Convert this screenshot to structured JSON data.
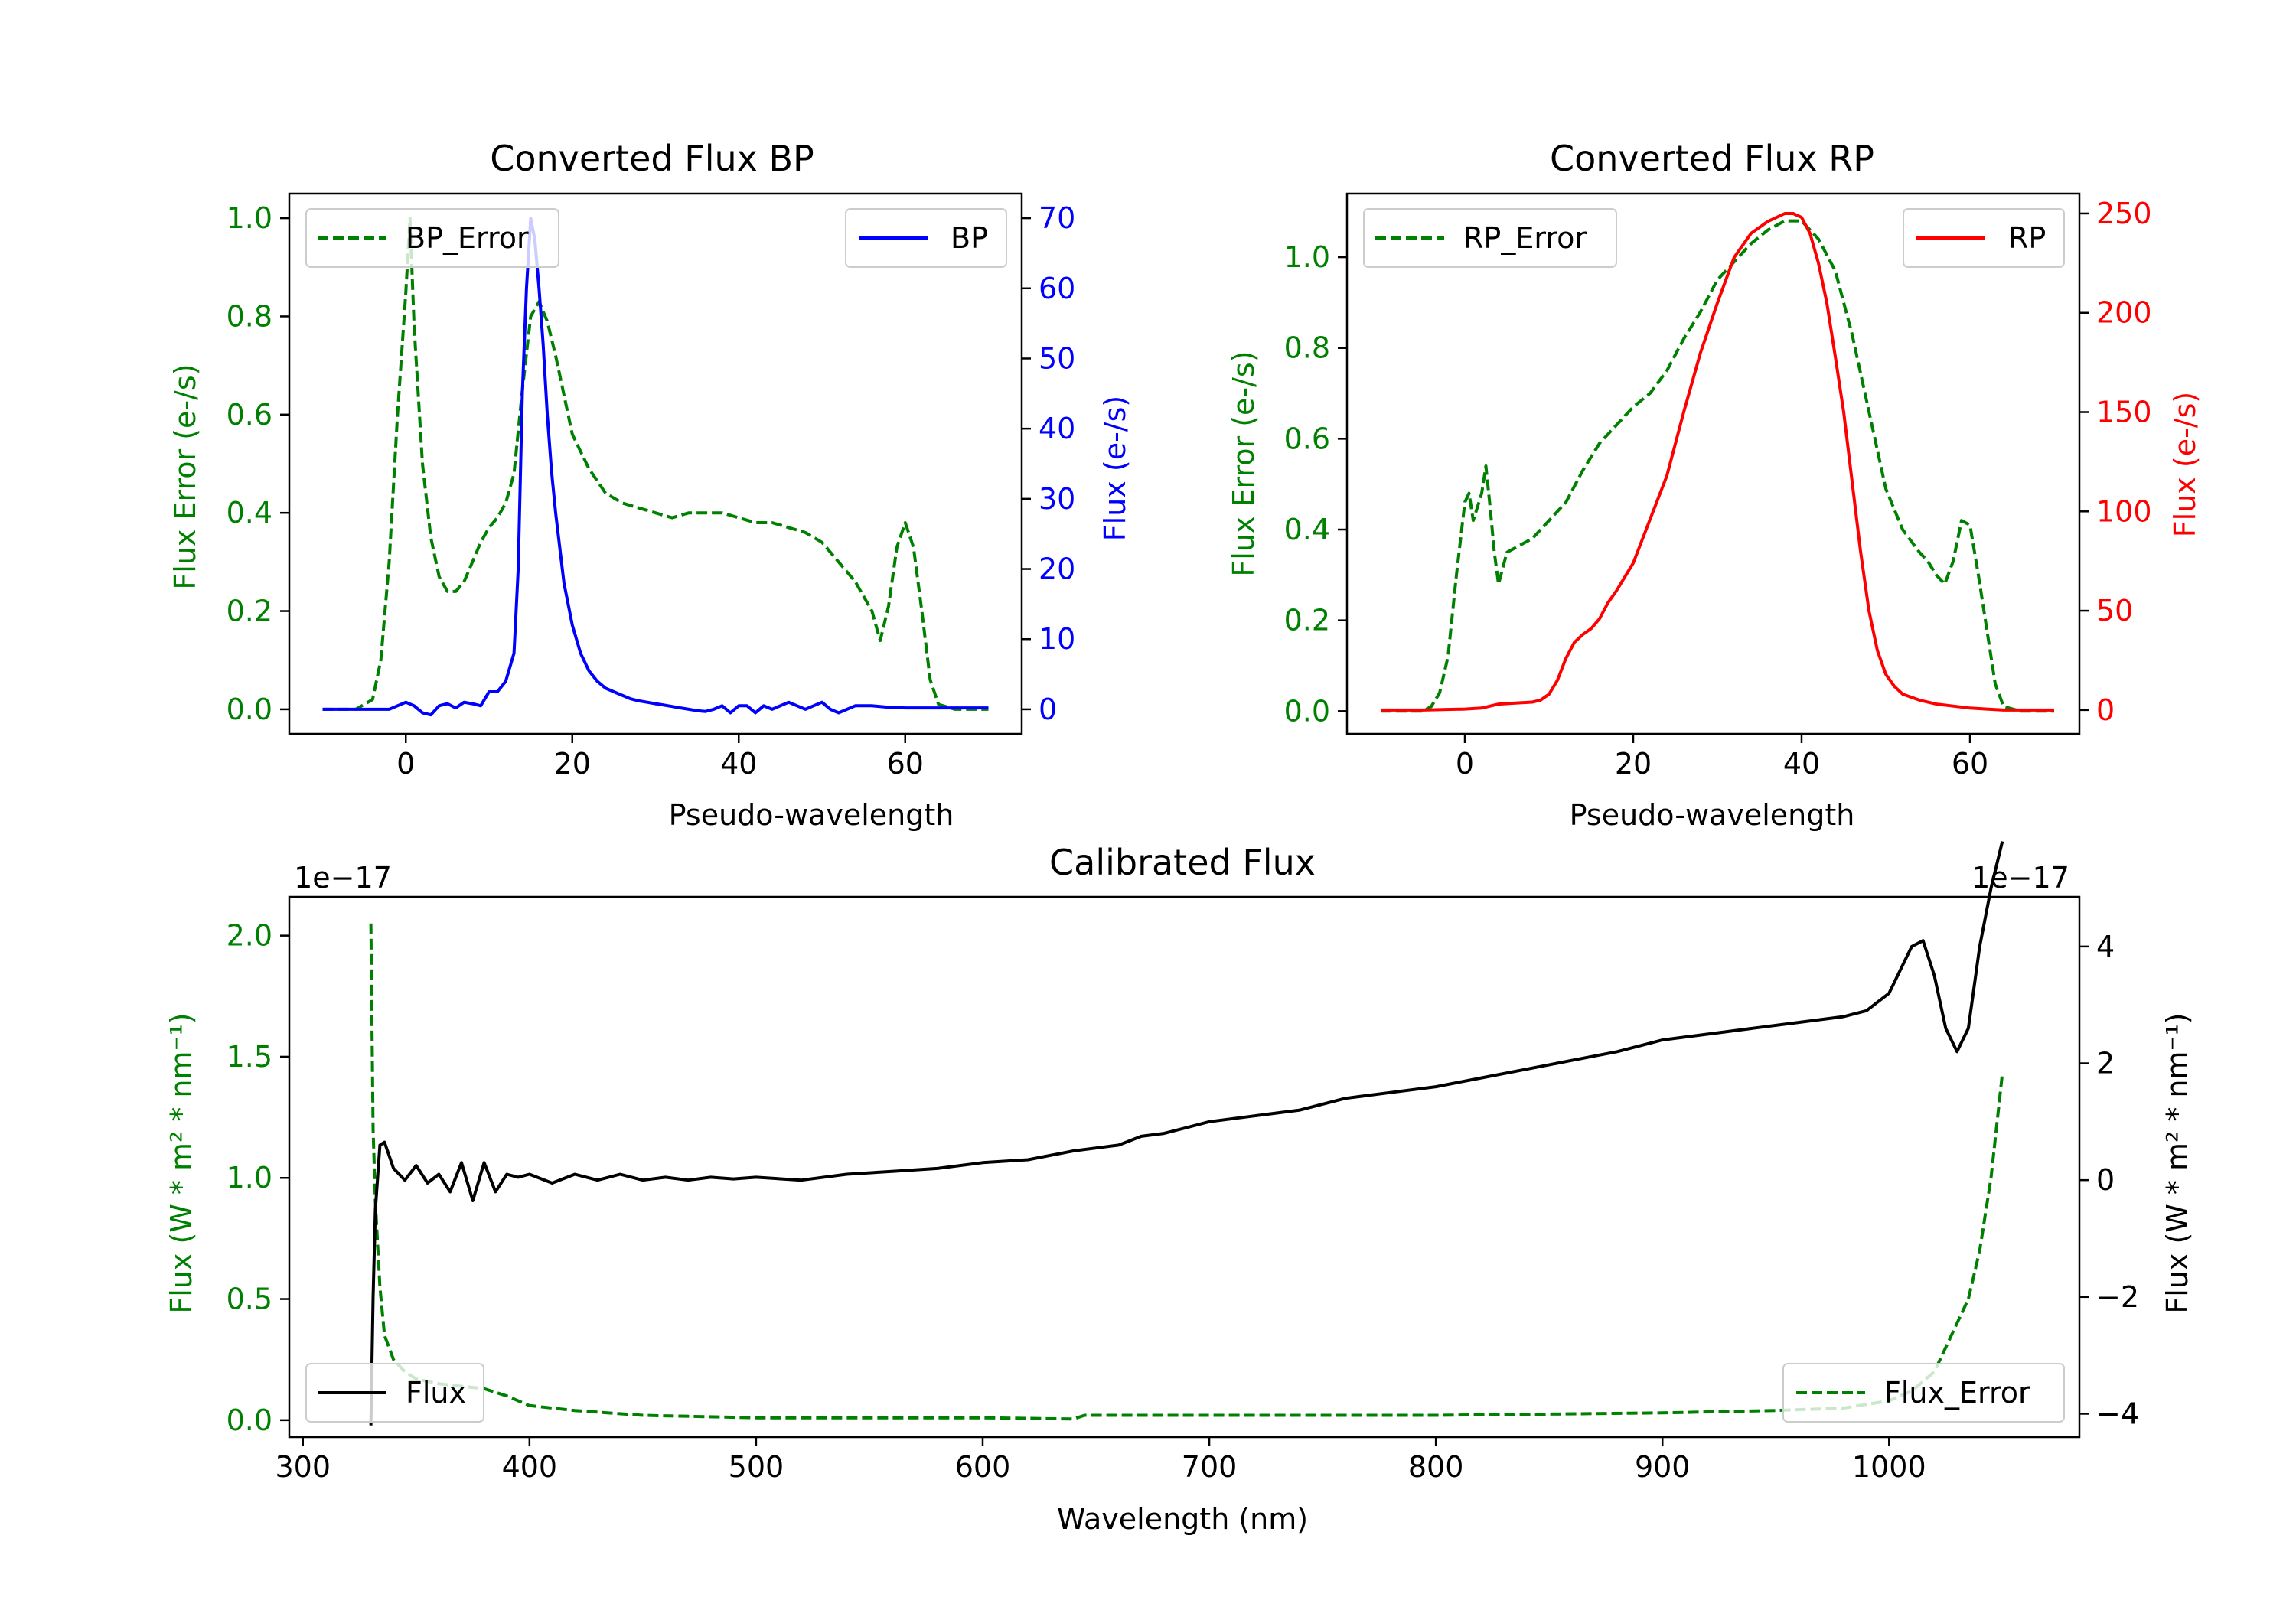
{
  "chart_data": [
    {
      "id": "bp",
      "type": "line",
      "title": "Converted Flux BP",
      "xlabel": "Pseudo-wavelength",
      "ylabel_left": "Flux Error (e-/s)",
      "ylabel_right": "Flux (e-/s)",
      "xlim": [
        -14,
        74
      ],
      "ylim_left": [
        -0.05,
        1.05
      ],
      "ylim_right": [
        -3.5,
        73.5
      ],
      "x_ticks": [
        0,
        20,
        40,
        60
      ],
      "left_ticks": [
        0.0,
        0.2,
        0.4,
        0.6,
        0.8,
        1.0
      ],
      "right_ticks": [
        0,
        10,
        20,
        30,
        40,
        50,
        60,
        70
      ],
      "left_tick_labels": [
        "0.0",
        "0.2",
        "0.4",
        "0.6",
        "0.8",
        "1.0"
      ],
      "right_tick_labels": [
        "0",
        "10",
        "20",
        "30",
        "40",
        "50",
        "60",
        "70"
      ],
      "x_tick_labels": [
        "0",
        "20",
        "40",
        "60"
      ],
      "left_color": "#008000",
      "right_color": "#0000ff",
      "series": [
        {
          "name": "BP_Error",
          "axis": "left",
          "style": "dashed",
          "color": "#008000",
          "x": [
            -10,
            -6,
            -4,
            -3,
            -2,
            -1,
            0,
            0.5,
            1,
            2,
            3,
            4,
            5,
            6,
            7,
            8,
            9,
            10,
            11,
            12,
            13,
            14,
            15,
            16,
            17,
            18,
            19,
            20,
            22,
            24,
            26,
            28,
            30,
            32,
            34,
            36,
            38,
            40,
            42,
            44,
            46,
            48,
            50,
            52,
            54,
            56,
            57,
            58,
            59,
            60,
            61,
            62,
            63,
            64,
            66,
            68,
            70
          ],
          "y": [
            0.0,
            0.0,
            0.02,
            0.1,
            0.3,
            0.6,
            0.85,
            1.0,
            0.78,
            0.5,
            0.35,
            0.27,
            0.24,
            0.24,
            0.26,
            0.3,
            0.34,
            0.37,
            0.39,
            0.42,
            0.48,
            0.65,
            0.8,
            0.83,
            0.79,
            0.72,
            0.64,
            0.56,
            0.49,
            0.44,
            0.42,
            0.41,
            0.4,
            0.39,
            0.4,
            0.4,
            0.4,
            0.39,
            0.38,
            0.38,
            0.37,
            0.36,
            0.34,
            0.3,
            0.26,
            0.2,
            0.14,
            0.21,
            0.33,
            0.38,
            0.33,
            0.2,
            0.06,
            0.01,
            0.0,
            0.0,
            0.0
          ]
        },
        {
          "name": "BP",
          "axis": "right",
          "style": "solid",
          "color": "#0000ff",
          "x": [
            -10,
            -6,
            -4,
            -3,
            -2,
            -1,
            0,
            1,
            2,
            3,
            4,
            5,
            6,
            7,
            8,
            9,
            10,
            11,
            12,
            12.5,
            13,
            13.5,
            14,
            14.5,
            15,
            15.5,
            16,
            16.5,
            17,
            17.5,
            18,
            19,
            20,
            21,
            22,
            23,
            24,
            25,
            26,
            27,
            28,
            29,
            30,
            31,
            32,
            33,
            34,
            35,
            36,
            37,
            38,
            39,
            40,
            41,
            42,
            43,
            44,
            45,
            46,
            47,
            48,
            49,
            50,
            51,
            52,
            54,
            56,
            58,
            60,
            62,
            64,
            66,
            68,
            70
          ],
          "y": [
            0,
            0,
            0,
            0,
            0,
            0.5,
            1,
            0.5,
            -0.5,
            -0.8,
            0.5,
            0.8,
            0.2,
            1,
            0.8,
            0.5,
            2.5,
            2.5,
            4,
            6,
            8,
            20,
            45,
            60,
            70,
            67,
            60,
            52,
            42,
            34,
            28,
            18,
            12,
            8,
            5.5,
            4,
            3,
            2.5,
            2,
            1.5,
            1.2,
            1,
            0.8,
            0.6,
            0.4,
            0.2,
            0,
            -0.2,
            -0.3,
            0,
            0.5,
            -0.5,
            0.5,
            0.5,
            -0.5,
            0.5,
            0,
            0.5,
            1,
            0.5,
            0,
            0.5,
            1,
            0,
            -0.5,
            0.5,
            0.5,
            0.3,
            0.2,
            0.2,
            0.2,
            0.2,
            0.2,
            0.2
          ]
        }
      ],
      "legend": [
        {
          "label": "BP_Error",
          "style": "dashed",
          "color": "#008000",
          "position": "upper-left"
        },
        {
          "label": "BP",
          "style": "solid",
          "color": "#0000ff",
          "position": "upper-right"
        }
      ]
    },
    {
      "id": "rp",
      "type": "line",
      "title": "Converted Flux RP",
      "xlabel": "Pseudo-wavelength",
      "ylabel_left": "Flux Error (e-/s)",
      "ylabel_right": "Flux (e-/s)",
      "xlim": [
        -14,
        73
      ],
      "ylim_left": [
        -0.05,
        1.14
      ],
      "ylim_right": [
        -12,
        260
      ],
      "x_ticks": [
        0,
        20,
        40,
        60
      ],
      "left_ticks": [
        0.0,
        0.2,
        0.4,
        0.6,
        0.8,
        1.0
      ],
      "right_ticks": [
        0,
        50,
        100,
        150,
        200,
        250
      ],
      "left_tick_labels": [
        "0.0",
        "0.2",
        "0.4",
        "0.6",
        "0.8",
        "1.0"
      ],
      "right_tick_labels": [
        "0",
        "50",
        "100",
        "150",
        "200",
        "250"
      ],
      "x_tick_labels": [
        "0",
        "20",
        "40",
        "60"
      ],
      "left_color": "#008000",
      "right_color": "#ff0000",
      "series": [
        {
          "name": "RP_Error",
          "axis": "left",
          "style": "dashed",
          "color": "#008000",
          "x": [
            -10,
            -5,
            -4,
            -3,
            -2,
            -1,
            0,
            0.5,
            1,
            2,
            2.5,
            3,
            3.5,
            4,
            5,
            6,
            7,
            8,
            9,
            10,
            12,
            14,
            16,
            18,
            20,
            22,
            24,
            26,
            28,
            30,
            32,
            34,
            36,
            38,
            40,
            42,
            44,
            46,
            48,
            50,
            52,
            54,
            55,
            56,
            57,
            58,
            59,
            60,
            61,
            62,
            63,
            64,
            66,
            68,
            70
          ],
          "y": [
            0.0,
            0.0,
            0.01,
            0.04,
            0.12,
            0.3,
            0.46,
            0.48,
            0.42,
            0.48,
            0.54,
            0.45,
            0.35,
            0.28,
            0.35,
            0.36,
            0.37,
            0.38,
            0.4,
            0.42,
            0.46,
            0.53,
            0.59,
            0.63,
            0.67,
            0.7,
            0.75,
            0.82,
            0.88,
            0.95,
            0.99,
            1.03,
            1.06,
            1.08,
            1.08,
            1.04,
            0.97,
            0.83,
            0.66,
            0.49,
            0.4,
            0.35,
            0.33,
            0.3,
            0.28,
            0.33,
            0.42,
            0.41,
            0.3,
            0.18,
            0.06,
            0.01,
            0.0,
            0.0,
            0.0
          ]
        },
        {
          "name": "RP",
          "axis": "right",
          "style": "solid",
          "color": "#ff0000",
          "x": [
            -10,
            -5,
            0,
            2,
            4,
            6,
            8,
            9,
            10,
            11,
            12,
            13,
            14,
            15,
            16,
            17,
            18,
            20,
            22,
            24,
            26,
            28,
            30,
            32,
            34,
            36,
            38,
            39,
            40,
            41,
            42,
            43,
            44,
            45,
            46,
            47,
            48,
            49,
            50,
            51,
            52,
            54,
            56,
            58,
            60,
            62,
            64,
            66,
            68,
            70
          ],
          "y": [
            0,
            0,
            0.5,
            1,
            3,
            3.5,
            4,
            5,
            8,
            15,
            26,
            34,
            38,
            41,
            46,
            54,
            60,
            74,
            96,
            118,
            150,
            180,
            205,
            228,
            240,
            246,
            250,
            250,
            248,
            240,
            225,
            205,
            178,
            150,
            115,
            80,
            50,
            30,
            18,
            12,
            8,
            5,
            3,
            2,
            1,
            0.5,
            0,
            0,
            0,
            0
          ]
        }
      ],
      "legend": [
        {
          "label": "RP_Error",
          "style": "dashed",
          "color": "#008000",
          "position": "upper-left"
        },
        {
          "label": "RP",
          "style": "solid",
          "color": "#ff0000",
          "position": "upper-right"
        }
      ]
    },
    {
      "id": "cal",
      "type": "line",
      "title": "Calibrated Flux",
      "xlabel": "Wavelength (nm)",
      "ylabel_left": "Flux (W * m² * nm⁻¹)",
      "ylabel_right": "Flux (W * m² * nm⁻¹)",
      "offset_left": "1e−17",
      "offset_right": "1e−17",
      "xlim": [
        294,
        1084
      ],
      "ylim_left": [
        -0.07,
        2.16
      ],
      "ylim_right": [
        -4.4,
        4.85
      ],
      "x_ticks": [
        300,
        400,
        500,
        600,
        700,
        800,
        900,
        1000
      ],
      "left_ticks": [
        0.0,
        0.5,
        1.0,
        1.5,
        2.0
      ],
      "right_ticks": [
        -4,
        -2,
        0,
        2,
        4
      ],
      "left_tick_labels": [
        "0.0",
        "0.5",
        "1.0",
        "1.5",
        "2.0"
      ],
      "right_tick_labels": [
        "−4",
        "−2",
        "0",
        "2",
        "4"
      ],
      "x_tick_labels": [
        "300",
        "400",
        "500",
        "600",
        "700",
        "800",
        "900",
        "1000"
      ],
      "left_color": "#008000",
      "right_color": "#000000",
      "series": [
        {
          "name": "Flux_Error",
          "axis": "left",
          "style": "dashed",
          "color": "#008000",
          "x": [
            330,
            331,
            332,
            334,
            336,
            340,
            345,
            350,
            360,
            370,
            380,
            390,
            400,
            420,
            450,
            500,
            550,
            600,
            640,
            645,
            700,
            800,
            900,
            950,
            980,
            1000,
            1010,
            1020,
            1025,
            1030,
            1035,
            1040,
            1045,
            1050
          ],
          "y": [
            2.05,
            1.2,
            0.9,
            0.55,
            0.35,
            0.25,
            0.2,
            0.17,
            0.15,
            0.14,
            0.13,
            0.1,
            0.06,
            0.04,
            0.02,
            0.01,
            0.01,
            0.01,
            0.005,
            0.02,
            0.02,
            0.02,
            0.03,
            0.04,
            0.05,
            0.08,
            0.12,
            0.2,
            0.3,
            0.4,
            0.5,
            0.7,
            1.0,
            1.43
          ]
        },
        {
          "name": "Flux",
          "axis": "right",
          "style": "solid",
          "color": "#000000",
          "x": [
            330,
            331,
            332,
            334,
            336,
            340,
            345,
            350,
            355,
            360,
            365,
            370,
            375,
            380,
            385,
            390,
            395,
            400,
            410,
            420,
            430,
            440,
            450,
            460,
            470,
            480,
            490,
            500,
            520,
            540,
            560,
            580,
            600,
            620,
            640,
            650,
            660,
            670,
            680,
            690,
            700,
            720,
            740,
            760,
            780,
            800,
            820,
            840,
            860,
            880,
            900,
            920,
            940,
            960,
            980,
            990,
            1000,
            1010,
            1015,
            1020,
            1025,
            1030,
            1035,
            1040,
            1045,
            1050
          ],
          "y": [
            -4.2,
            -2.0,
            -0.5,
            0.6,
            0.65,
            0.2,
            0.0,
            0.25,
            -0.05,
            0.1,
            -0.2,
            0.3,
            -0.35,
            0.3,
            -0.2,
            0.1,
            0.05,
            0.1,
            -0.05,
            0.1,
            0.0,
            0.1,
            0.0,
            0.05,
            0.0,
            0.05,
            0.02,
            0.05,
            0.0,
            0.1,
            0.15,
            0.2,
            0.3,
            0.35,
            0.5,
            0.55,
            0.6,
            0.75,
            0.8,
            0.9,
            1.0,
            1.1,
            1.2,
            1.4,
            1.5,
            1.6,
            1.75,
            1.9,
            2.05,
            2.2,
            2.4,
            2.5,
            2.6,
            2.7,
            2.8,
            2.9,
            3.2,
            4.0,
            4.1,
            3.5,
            2.6,
            2.2,
            2.6,
            4.0,
            5.0,
            5.8
          ]
        }
      ],
      "legend": [
        {
          "label": "Flux",
          "style": "solid",
          "color": "#000000",
          "position": "lower-left"
        },
        {
          "label": "Flux_Error",
          "style": "dashed",
          "color": "#008000",
          "position": "lower-right"
        }
      ]
    }
  ]
}
